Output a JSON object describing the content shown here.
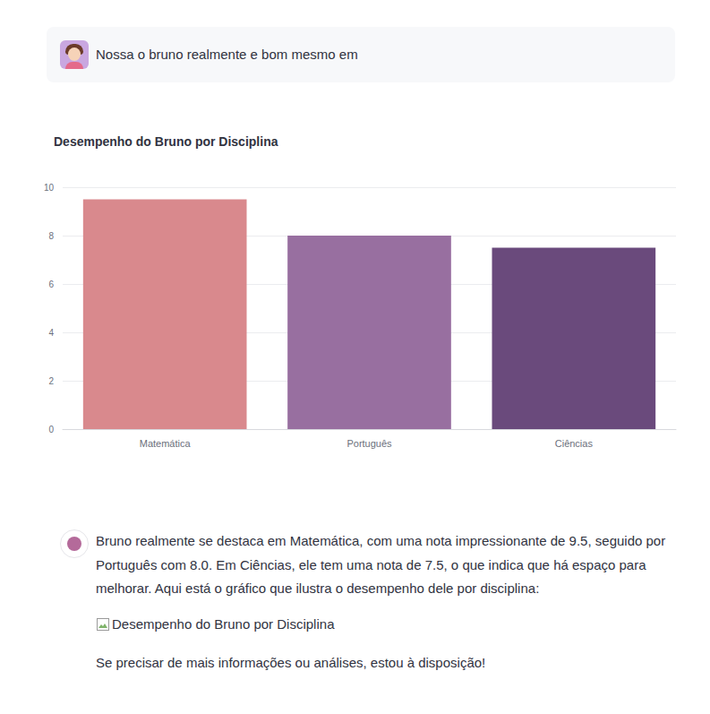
{
  "user_message": "Nossa o bruno realmente e bom mesmo em",
  "assistant_message": {
    "text": "Bruno realmente se destaca em Matemática, com uma nota impressionante de 9.5, seguido por Português com 8.0. Em Ciências, ele tem uma nota de 7.5, o que indica que há espaço para melhorar. Aqui está o gráfico que ilustra o desempenho dele por disciplina:",
    "image_alt": "Desempenho do Bruno por Disciplina",
    "closing": "Se precisar de mais informações ou análises, estou à disposição!"
  },
  "chart_data": {
    "type": "bar",
    "title": "Desempenho do Bruno por Disciplina",
    "categories": [
      "Matemática",
      "Português",
      "Ciências"
    ],
    "values": [
      9.5,
      8.0,
      7.5
    ],
    "colors": [
      "#d9898d",
      "#986fa0",
      "#6a4a7c"
    ],
    "ylim": [
      0,
      10
    ],
    "yticks": [
      0,
      2,
      4,
      6,
      8,
      10
    ],
    "grid": true
  }
}
